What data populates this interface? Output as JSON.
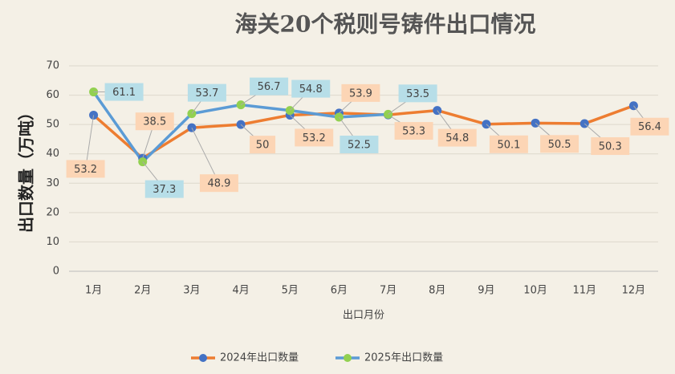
{
  "chart_data": {
    "type": "line",
    "title": "海关20个税则号铸件出口情况",
    "xlabel": "出口月份",
    "ylabel": "出口数量（万吨）",
    "categories": [
      "1月",
      "2月",
      "3月",
      "4月",
      "5月",
      "6月",
      "7月",
      "8月",
      "9月",
      "10月",
      "11月",
      "12月"
    ],
    "series": [
      {
        "name": "2024年出口数量",
        "color": "#ed7d31",
        "marker_color": "#4472c4",
        "label_fill": "#fcd5b5",
        "values": [
          53.2,
          38.5,
          48.9,
          50,
          53.2,
          53.9,
          53.3,
          54.8,
          50.1,
          50.5,
          50.3,
          56.4
        ]
      },
      {
        "name": "2025年出口数量",
        "color": "#5b9bd5",
        "marker_color": "#92d050",
        "label_fill": "#b7dee8",
        "values": [
          61.1,
          37.3,
          53.7,
          56.7,
          54.8,
          52.5,
          53.5,
          null,
          null,
          null,
          null,
          null
        ]
      }
    ],
    "ylim": [
      0,
      70
    ],
    "yticks": [
      0,
      10,
      20,
      30,
      40,
      50,
      60,
      70
    ],
    "grid": true,
    "legend": "bottom"
  }
}
